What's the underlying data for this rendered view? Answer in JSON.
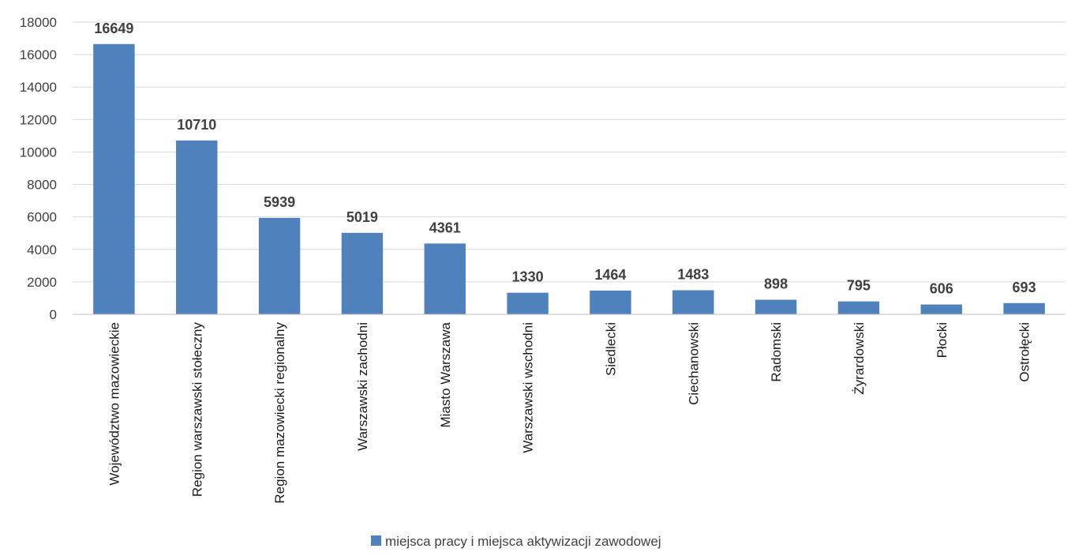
{
  "chart_data": {
    "type": "bar",
    "categories": [
      "Województwo mazowieckie",
      "Region warszawski stołeczny",
      "Region mazowiecki regionalny",
      "Warszawski zachodni",
      "Miasto Warszawa",
      "Warszawski wschodni",
      "Siedlecki",
      "Ciechanowski",
      "Radomski",
      "Żyrardowski",
      "Płocki",
      "Ostrołęcki"
    ],
    "series": [
      {
        "name": "miejsca pracy i miejsca aktywizacji zawodowej",
        "values": [
          16649,
          10710,
          5939,
          5019,
          4361,
          1330,
          1464,
          1483,
          898,
          795,
          606,
          693
        ],
        "color": "#4F81BD"
      }
    ],
    "ylim": [
      0,
      18000
    ],
    "yticks": [
      0,
      2000,
      4000,
      6000,
      8000,
      10000,
      12000,
      14000,
      16000,
      18000
    ],
    "grid": true,
    "legend_position": "bottom",
    "data_labels": true
  }
}
